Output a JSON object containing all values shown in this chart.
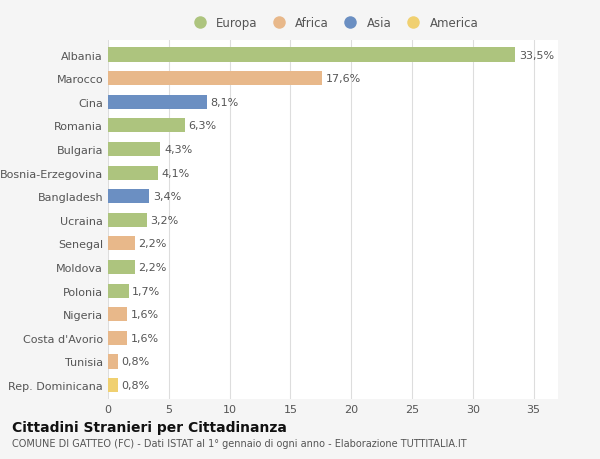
{
  "countries": [
    "Albania",
    "Marocco",
    "Cina",
    "Romania",
    "Bulgaria",
    "Bosnia-Erzegovina",
    "Bangladesh",
    "Ucraina",
    "Senegal",
    "Moldova",
    "Polonia",
    "Nigeria",
    "Costa d'Avorio",
    "Tunisia",
    "Rep. Dominicana"
  ],
  "values": [
    33.5,
    17.6,
    8.1,
    6.3,
    4.3,
    4.1,
    3.4,
    3.2,
    2.2,
    2.2,
    1.7,
    1.6,
    1.6,
    0.8,
    0.8
  ],
  "continents": [
    "Europa",
    "Africa",
    "Asia",
    "Europa",
    "Europa",
    "Europa",
    "Asia",
    "Europa",
    "Africa",
    "Europa",
    "Europa",
    "Africa",
    "Africa",
    "Africa",
    "America"
  ],
  "continent_colors": {
    "Europa": "#adc47e",
    "Africa": "#e8b88a",
    "Asia": "#6b8fc2",
    "America": "#f0d070"
  },
  "legend_order": [
    "Europa",
    "Africa",
    "Asia",
    "America"
  ],
  "legend_colors": [
    "#adc47e",
    "#e8b88a",
    "#6b8fc2",
    "#f0d070"
  ],
  "background_color": "#f5f5f5",
  "plot_bg_color": "#ffffff",
  "title": "Cittadini Stranieri per Cittadinanza",
  "subtitle": "COMUNE DI GATTEO (FC) - Dati ISTAT al 1° gennaio di ogni anno - Elaborazione TUTTITALIA.IT",
  "xlim": [
    0,
    37
  ],
  "grid_color": "#dddddd",
  "bar_height": 0.6,
  "label_fontsize": 8,
  "tick_fontsize": 8,
  "title_fontsize": 10,
  "subtitle_fontsize": 7
}
